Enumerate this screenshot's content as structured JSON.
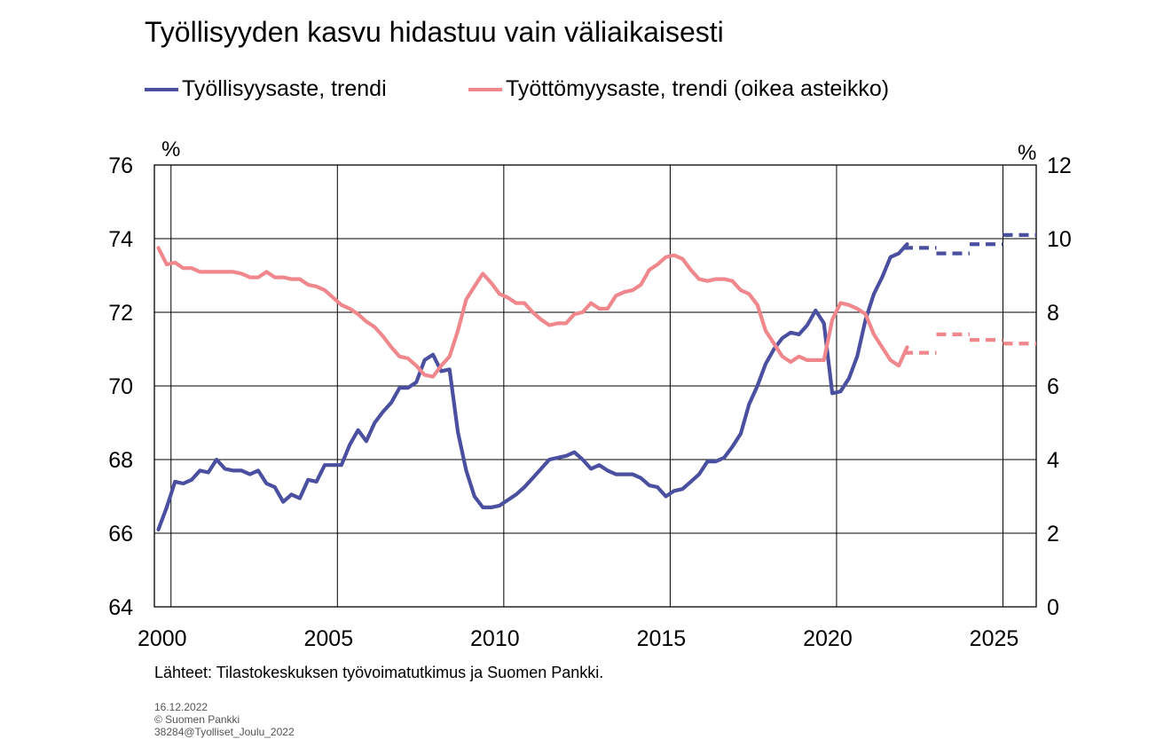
{
  "chart_data": {
    "type": "line",
    "title": "Työllisyyden kasvu hidastuu vain väliaikaisesti",
    "source": "Lähteet: Tilastokeskuksen työvoimatutkimus ja Suomen Pankki.",
    "date": "16.12.2022",
    "copyright": "© Suomen Pankki",
    "code": "38284@Tyolliset_Joulu_2022",
    "left_unit": "%",
    "right_unit": "%",
    "xlim": [
      1999.5,
      2026
    ],
    "x_ticks": [
      2000,
      2005,
      2010,
      2015,
      2020,
      2025
    ],
    "left_ylim": [
      64,
      76
    ],
    "left_ticks": [
      64,
      66,
      68,
      70,
      72,
      74,
      76
    ],
    "right_ylim": [
      0,
      12
    ],
    "right_ticks": [
      0,
      2,
      4,
      6,
      8,
      10,
      12
    ],
    "grid": true,
    "legend_position": "top",
    "series": [
      {
        "name": "Työllisyysaste, trendi",
        "axis": "left",
        "color": "#4b4fa0",
        "x": [
          1999.62,
          1999.87,
          2000.12,
          2000.37,
          2000.62,
          2000.87,
          2001.12,
          2001.37,
          2001.62,
          2001.87,
          2002.12,
          2002.37,
          2002.62,
          2002.87,
          2003.12,
          2003.37,
          2003.62,
          2003.87,
          2004.12,
          2004.37,
          2004.62,
          2004.87,
          2005.12,
          2005.37,
          2005.62,
          2005.87,
          2006.12,
          2006.37,
          2006.62,
          2006.87,
          2007.12,
          2007.37,
          2007.62,
          2007.87,
          2008.12,
          2008.37,
          2008.62,
          2008.87,
          2009.12,
          2009.37,
          2009.62,
          2009.87,
          2010.12,
          2010.37,
          2010.62,
          2010.87,
          2011.12,
          2011.37,
          2011.62,
          2011.87,
          2012.12,
          2012.37,
          2012.62,
          2012.87,
          2013.12,
          2013.37,
          2013.62,
          2013.87,
          2014.12,
          2014.37,
          2014.62,
          2014.87,
          2015.12,
          2015.37,
          2015.62,
          2015.87,
          2016.12,
          2016.37,
          2016.62,
          2016.87,
          2017.12,
          2017.37,
          2017.62,
          2017.87,
          2018.12,
          2018.37,
          2018.62,
          2018.87,
          2019.12,
          2019.37,
          2019.62,
          2019.87,
          2020.12,
          2020.37,
          2020.62,
          2020.87,
          2021.12,
          2021.37,
          2021.62,
          2021.87,
          2022.12
        ],
        "values": [
          66.1,
          66.7,
          67.4,
          67.35,
          67.45,
          67.7,
          67.65,
          68.0,
          67.75,
          67.7,
          67.7,
          67.6,
          67.7,
          67.35,
          67.25,
          66.85,
          67.05,
          66.95,
          67.45,
          67.4,
          67.85,
          67.85,
          67.85,
          68.4,
          68.8,
          68.5,
          69.0,
          69.3,
          69.55,
          69.95,
          69.95,
          70.1,
          70.7,
          70.85,
          70.4,
          70.45,
          68.75,
          67.7,
          67.0,
          66.7,
          66.7,
          66.75,
          66.9,
          67.05,
          67.25,
          67.5,
          67.75,
          68.0,
          68.05,
          68.1,
          68.2,
          68.0,
          67.75,
          67.85,
          67.7,
          67.6,
          67.6,
          67.6,
          67.5,
          67.3,
          67.25,
          67.0,
          67.15,
          67.2,
          67.4,
          67.6,
          67.95,
          67.95,
          68.05,
          68.35,
          68.7,
          69.5,
          70.0,
          70.6,
          71.0,
          71.3,
          71.45,
          71.4,
          71.65,
          72.05,
          71.7,
          69.8,
          69.85,
          70.2,
          70.8,
          71.8,
          72.5,
          72.95,
          73.5,
          73.6,
          73.85
        ]
      },
      {
        "name": "Työttömyysaste, trendi (oikea asteikko)",
        "axis": "right",
        "color": "#ef878c",
        "x": [
          1999.62,
          1999.87,
          2000.12,
          2000.37,
          2000.62,
          2000.87,
          2001.12,
          2001.37,
          2001.62,
          2001.87,
          2002.12,
          2002.37,
          2002.62,
          2002.87,
          2003.12,
          2003.37,
          2003.62,
          2003.87,
          2004.12,
          2004.37,
          2004.62,
          2004.87,
          2005.12,
          2005.37,
          2005.62,
          2005.87,
          2006.12,
          2006.37,
          2006.62,
          2006.87,
          2007.12,
          2007.37,
          2007.62,
          2007.87,
          2008.12,
          2008.37,
          2008.62,
          2008.87,
          2009.12,
          2009.37,
          2009.62,
          2009.87,
          2010.12,
          2010.37,
          2010.62,
          2010.87,
          2011.12,
          2011.37,
          2011.62,
          2011.87,
          2012.12,
          2012.37,
          2012.62,
          2012.87,
          2013.12,
          2013.37,
          2013.62,
          2013.87,
          2014.12,
          2014.37,
          2014.62,
          2014.87,
          2015.12,
          2015.37,
          2015.62,
          2015.87,
          2016.12,
          2016.37,
          2016.62,
          2016.87,
          2017.12,
          2017.37,
          2017.62,
          2017.87,
          2018.12,
          2018.37,
          2018.62,
          2018.87,
          2019.12,
          2019.37,
          2019.62,
          2019.87,
          2020.12,
          2020.37,
          2020.62,
          2020.87,
          2021.12,
          2021.37,
          2021.62,
          2021.87,
          2022.12
        ],
        "values": [
          9.75,
          9.3,
          9.35,
          9.2,
          9.2,
          9.1,
          9.1,
          9.1,
          9.1,
          9.1,
          9.05,
          8.95,
          8.95,
          9.1,
          8.95,
          8.95,
          8.9,
          8.9,
          8.75,
          8.7,
          8.6,
          8.4,
          8.2,
          8.1,
          7.95,
          7.75,
          7.6,
          7.35,
          7.05,
          6.8,
          6.75,
          6.55,
          6.3,
          6.25,
          6.55,
          6.8,
          7.5,
          8.35,
          8.7,
          9.05,
          8.8,
          8.5,
          8.4,
          8.25,
          8.25,
          8.0,
          7.8,
          7.65,
          7.7,
          7.7,
          7.95,
          8.0,
          8.25,
          8.1,
          8.1,
          8.45,
          8.55,
          8.6,
          8.75,
          9.15,
          9.3,
          9.5,
          9.55,
          9.45,
          9.15,
          8.9,
          8.85,
          8.9,
          8.9,
          8.85,
          8.6,
          8.5,
          8.2,
          7.5,
          7.15,
          6.8,
          6.65,
          6.8,
          6.7,
          6.7,
          6.7,
          7.8,
          8.25,
          8.2,
          8.1,
          7.95,
          7.4,
          7.05,
          6.7,
          6.55,
          7.05
        ]
      }
    ],
    "forecasts": [
      {
        "axis": "left",
        "color": "#4b4fa0",
        "segments": [
          {
            "x": [
              2022.0,
              2023.0
            ],
            "value": 73.75
          },
          {
            "x": [
              2023.0,
              2024.0
            ],
            "value": 73.6
          },
          {
            "x": [
              2024.0,
              2025.0
            ],
            "value": 73.85
          },
          {
            "x": [
              2025.0,
              2026.0
            ],
            "value": 74.1
          }
        ]
      },
      {
        "axis": "right",
        "color": "#ef878c",
        "segments": [
          {
            "x": [
              2022.0,
              2023.0
            ],
            "value": 6.9
          },
          {
            "x": [
              2023.0,
              2024.0
            ],
            "value": 7.4
          },
          {
            "x": [
              2024.0,
              2025.0
            ],
            "value": 7.25
          },
          {
            "x": [
              2025.0,
              2026.0
            ],
            "value": 7.15
          }
        ]
      }
    ]
  }
}
